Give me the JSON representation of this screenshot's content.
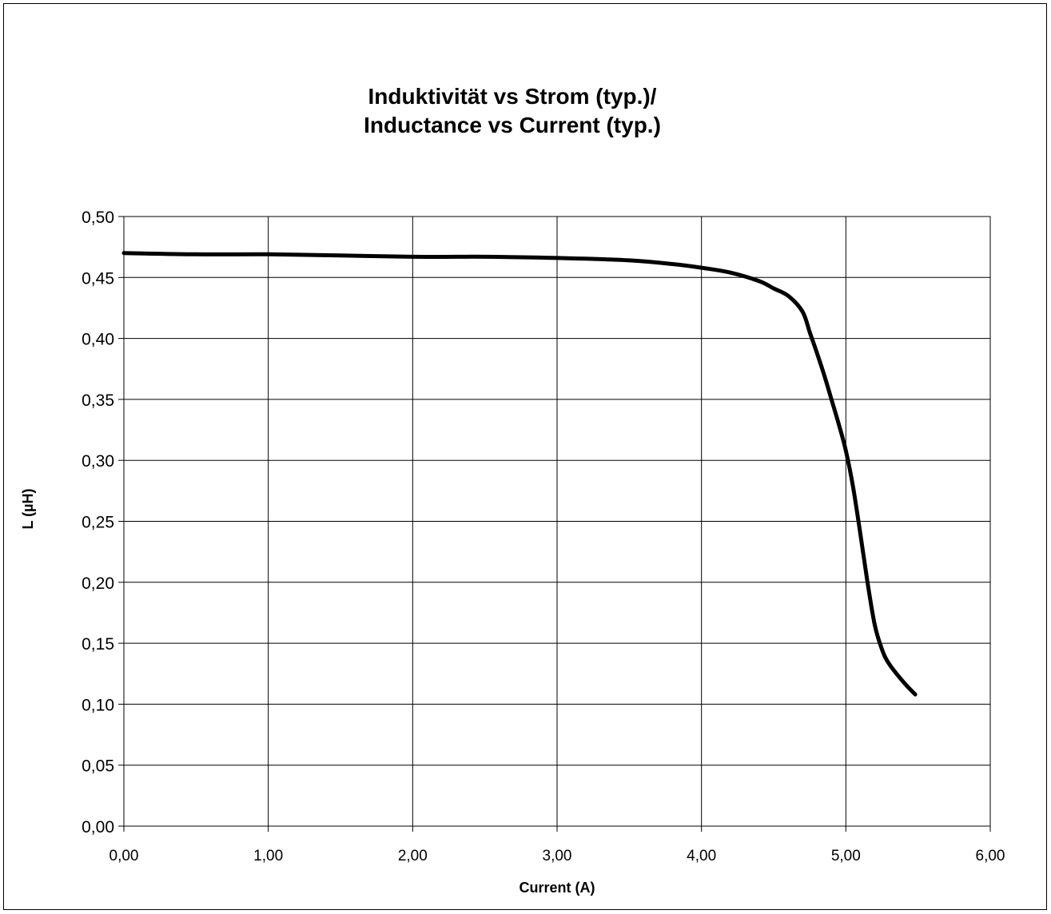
{
  "chart_data": {
    "type": "line",
    "title_lines": [
      "Induktivität vs Strom (typ.)/",
      "Inductance vs Current (typ.)"
    ],
    "xlabel": "Current (A)",
    "ylabel": "L (µH)",
    "xlim": [
      0,
      6
    ],
    "ylim": [
      0,
      0.5
    ],
    "x_ticks": [
      0,
      1,
      2,
      3,
      4,
      5,
      6
    ],
    "x_tick_labels": [
      "0,00",
      "1,00",
      "2,00",
      "3,00",
      "4,00",
      "5,00",
      "6,00"
    ],
    "y_ticks": [
      0,
      0.05,
      0.1,
      0.15,
      0.2,
      0.25,
      0.3,
      0.35,
      0.4,
      0.45,
      0.5
    ],
    "y_tick_labels": [
      "0,00",
      "0,05",
      "0,10",
      "0,15",
      "0,20",
      "0,25",
      "0,30",
      "0,35",
      "0,40",
      "0,45",
      "0,50"
    ],
    "grid": true,
    "legend": "none",
    "line_color": "#000000",
    "series": [
      {
        "x": [
          0,
          0.5,
          1.0,
          1.5,
          2.0,
          2.3,
          2.5,
          3.0,
          3.5,
          3.8,
          4.0,
          4.2,
          4.4,
          4.5,
          4.6,
          4.7,
          4.75,
          4.8,
          4.85,
          4.9,
          4.95,
          5.0,
          5.05,
          5.1,
          5.15,
          5.2,
          5.25,
          5.3,
          5.4,
          5.48
        ],
        "y": [
          0.47,
          0.469,
          0.469,
          0.468,
          0.467,
          0.467,
          0.467,
          0.466,
          0.464,
          0.461,
          0.458,
          0.454,
          0.447,
          0.441,
          0.435,
          0.422,
          0.405,
          0.388,
          0.37,
          0.35,
          0.33,
          0.308,
          0.278,
          0.24,
          0.2,
          0.165,
          0.145,
          0.133,
          0.118,
          0.108
        ]
      }
    ]
  }
}
